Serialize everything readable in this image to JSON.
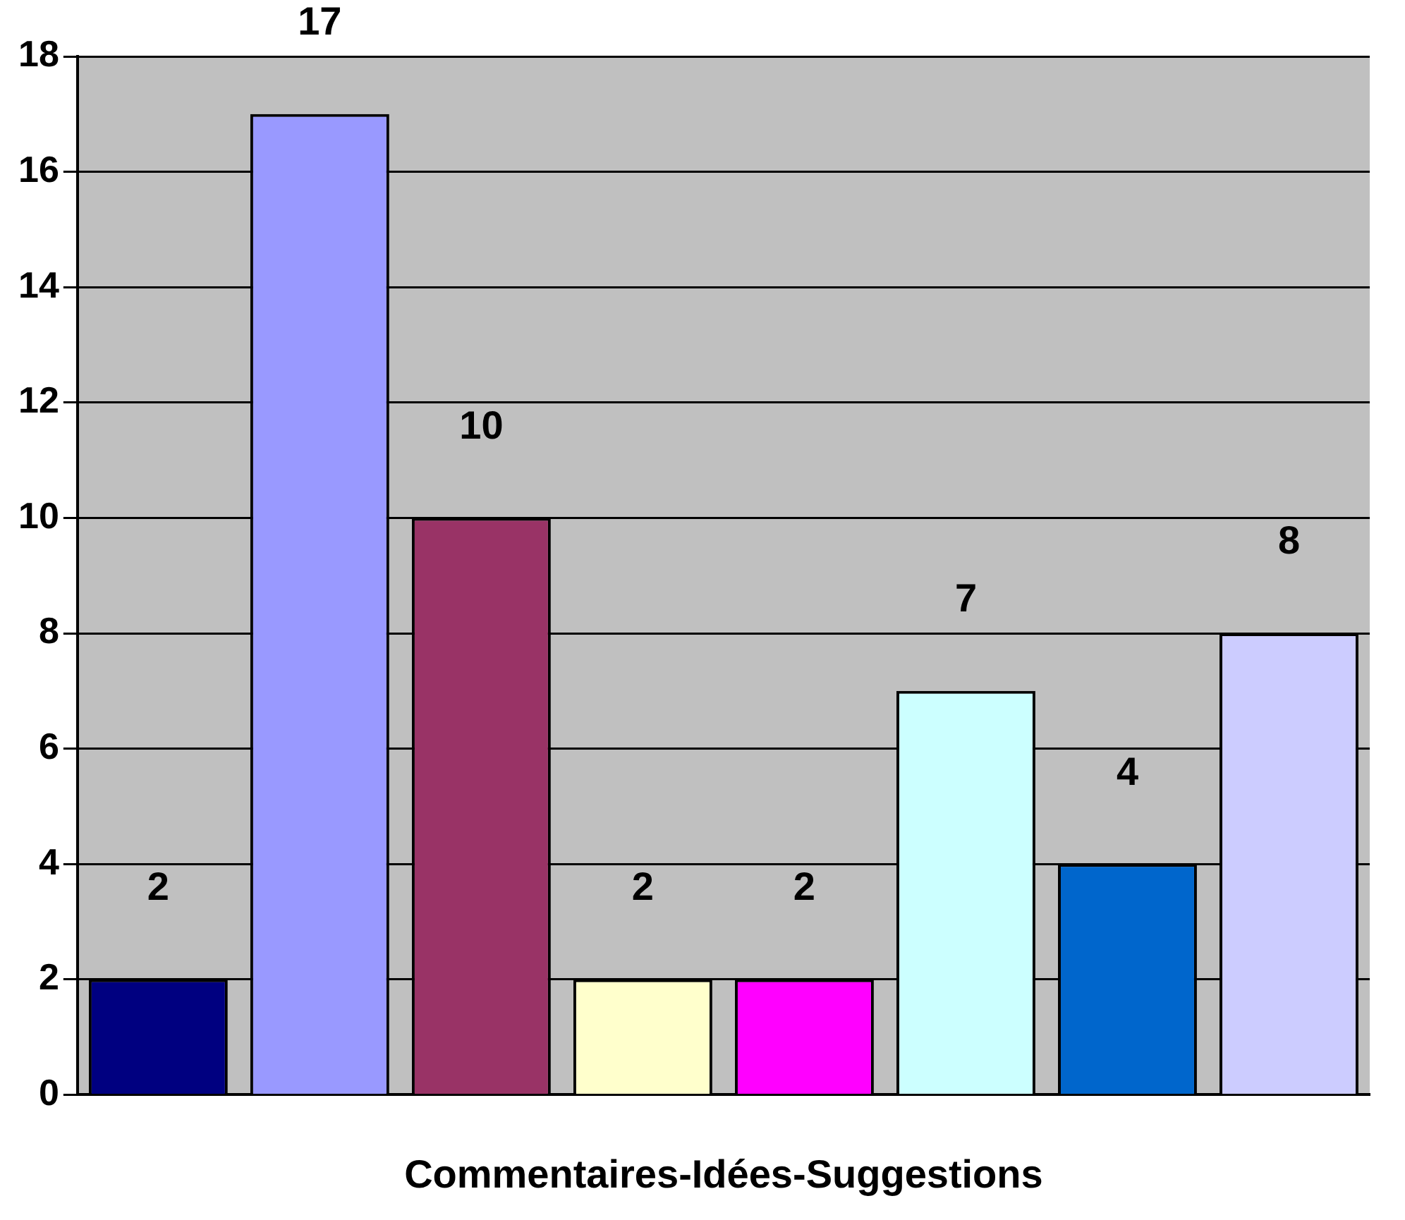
{
  "chart_data": {
    "type": "bar",
    "xlabel": "Commentaires-Idées-Suggestions",
    "categories": [
      null,
      null,
      null,
      null,
      null,
      null,
      null,
      null
    ],
    "values": [
      2,
      17,
      10,
      2,
      2,
      7,
      4,
      8
    ],
    "colors": [
      "#000080",
      "#9999ff",
      "#993366",
      "#ffffcc",
      "#ff00ff",
      "#ccffff",
      "#0066cc",
      "#ccccff"
    ],
    "ylim": [
      0,
      18
    ],
    "yticks": [
      0,
      2,
      4,
      6,
      8,
      10,
      12,
      14,
      16,
      18
    ],
    "grid": "y",
    "legend": false,
    "data_labels": true
  }
}
